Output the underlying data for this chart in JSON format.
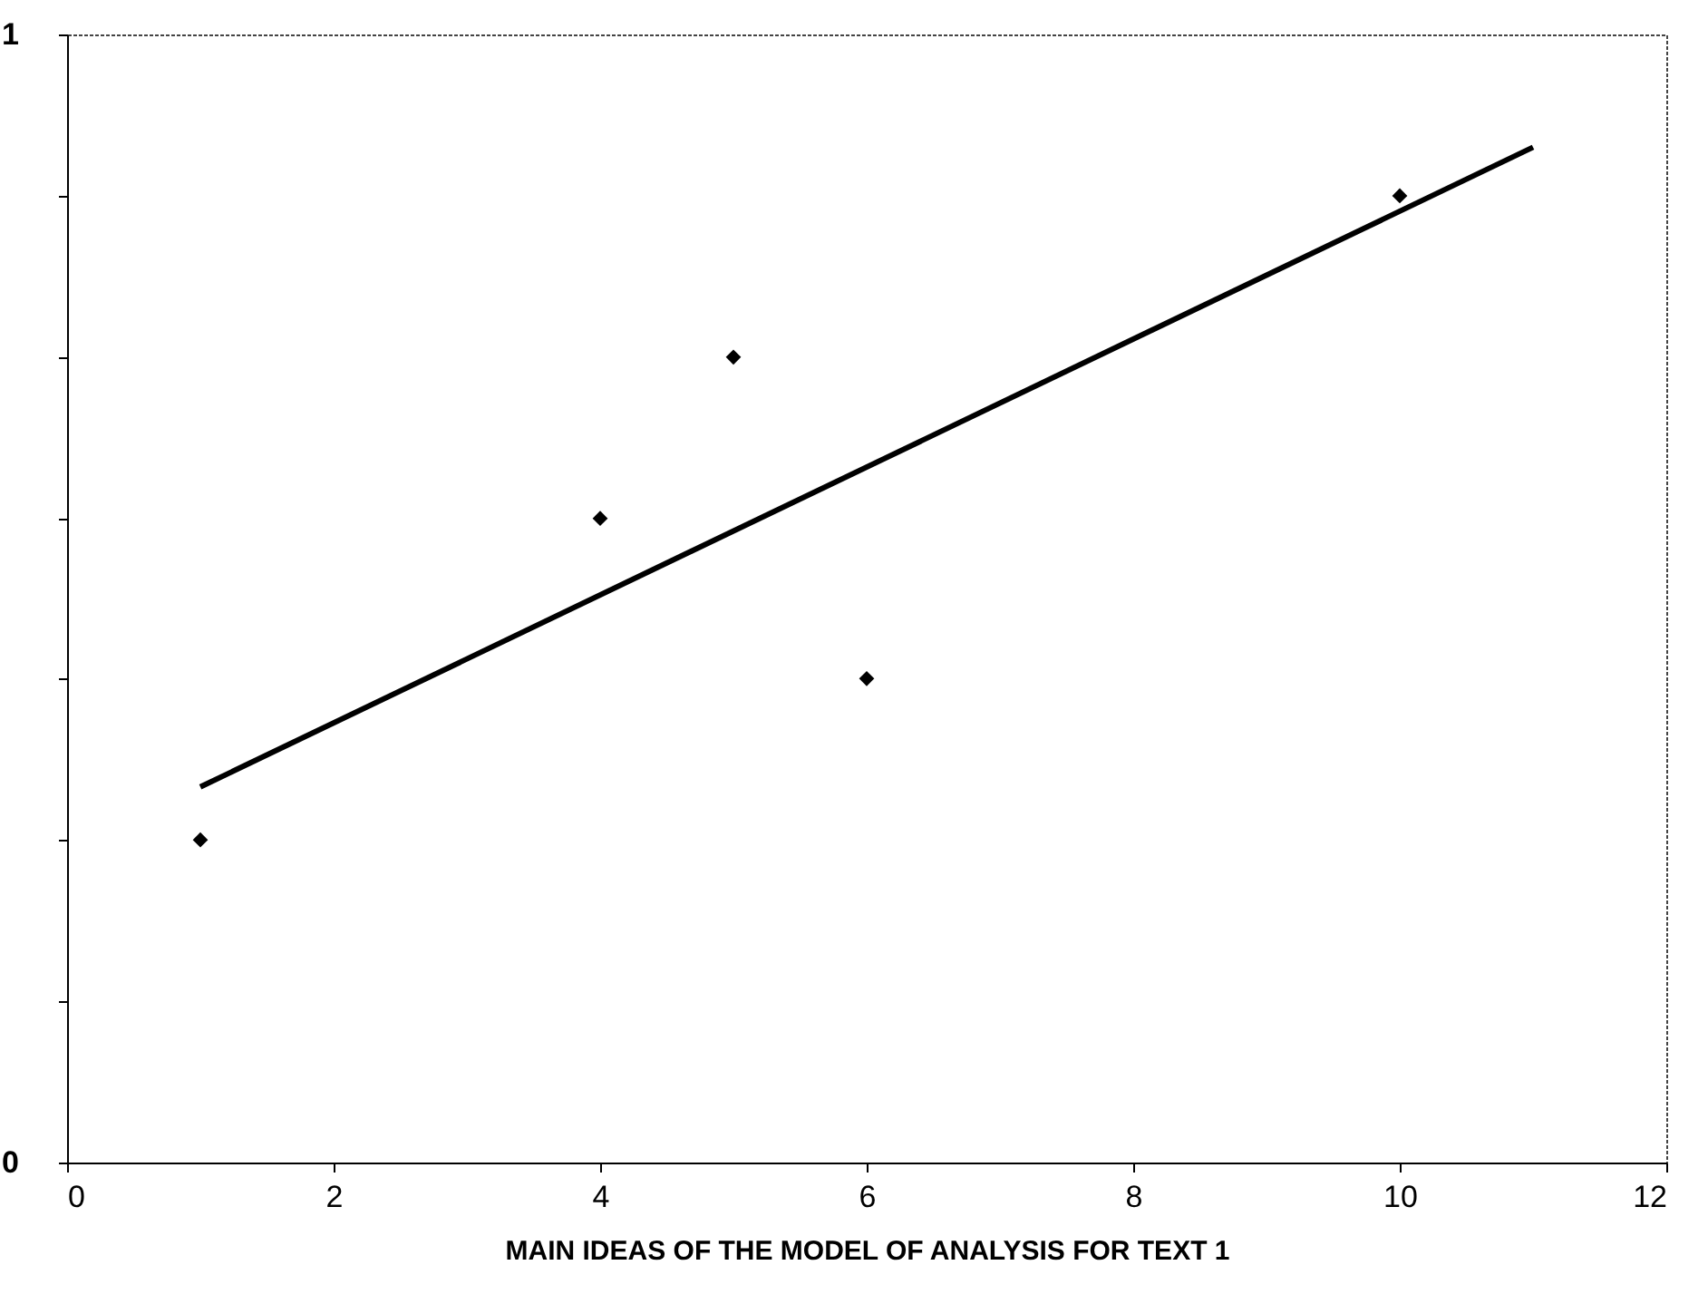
{
  "chart_data": {
    "type": "scatter",
    "xlabel": "MAIN IDEAS OF THE MODEL OF ANALYSIS FOR TEXT 1",
    "series": [
      {
        "color": "#000000",
        "x": [
          1,
          4,
          5,
          6,
          10
        ],
        "values": [
          0.286,
          0.571,
          0.714,
          0.429,
          0.857
        ],
        "marker": "diamond"
      },
      {
        "type": "line",
        "color": "#000000",
        "x": [
          1,
          11
        ],
        "values": [
          0.333,
          0.9
        ],
        "line_style": "solid"
      }
    ],
    "xlim": [
      0,
      12
    ],
    "xticks": [
      0,
      2,
      4,
      6,
      8,
      10,
      12
    ],
    "ylim": [
      0,
      1
    ],
    "yticks": [
      0,
      {
        "value": 0.143,
        "label": null
      },
      {
        "value": 0.286,
        "label": null
      },
      {
        "value": 0.429,
        "label": null
      },
      {
        "value": 0.571,
        "label": null
      },
      {
        "value": 0.714,
        "label": null
      },
      {
        "value": 0.857,
        "label": null
      },
      1
    ],
    "grid": false
  }
}
